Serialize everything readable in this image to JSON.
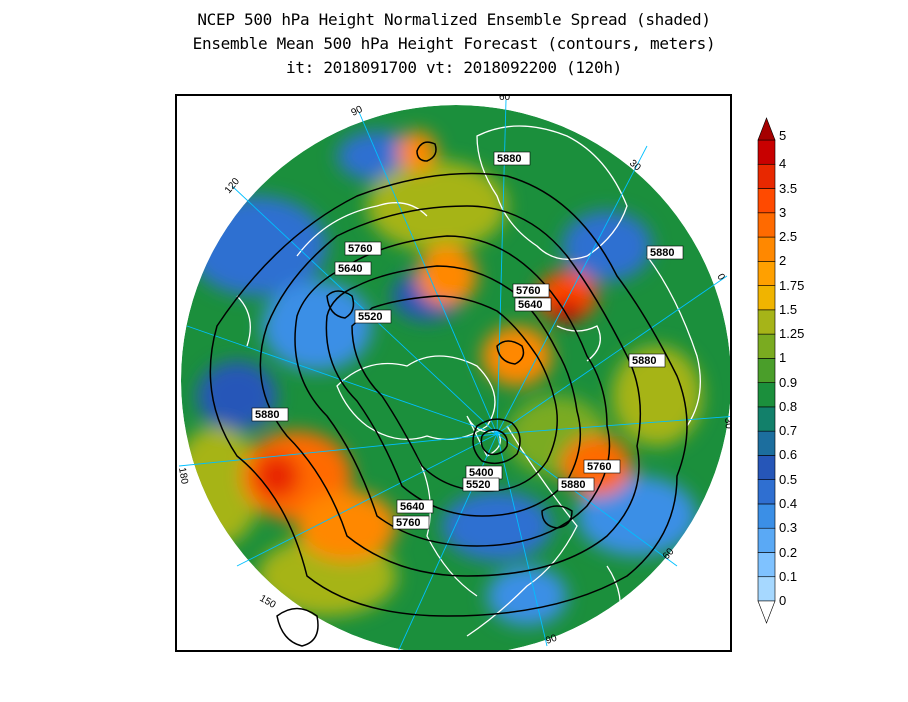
{
  "title": {
    "line1": "NCEP 500 hPa Height Normalized Ensemble Spread (shaded)",
    "line2": "Ensemble Mean 500 hPa Height Forecast (contours, meters)",
    "line3": "it: 2018091700      vt: 2018092200 (120h)"
  },
  "map": {
    "projection": "north-polar-stereographic",
    "longitude_labels": [
      "90",
      "60",
      "30",
      "0",
      "30",
      "60",
      "90",
      "120",
      "150",
      "180",
      "150",
      "120"
    ],
    "contour_labels": [
      "5880",
      "5880",
      "5760",
      "5640",
      "5520",
      "5760",
      "5640",
      "5880",
      "5880",
      "5760",
      "5400",
      "5520",
      "5640",
      "5760",
      "5880"
    ],
    "colors": {
      "contour": "#000000",
      "coastline": "#ffffff",
      "meridian": "#00bfff"
    }
  },
  "colorbar": {
    "levels": [
      "0",
      "0.1",
      "0.2",
      "0.3",
      "0.4",
      "0.5",
      "0.6",
      "0.7",
      "0.8",
      "0.9",
      "1",
      "1.25",
      "1.5",
      "1.75",
      "2",
      "2.5",
      "3",
      "3.5",
      "4",
      "5"
    ],
    "colors": [
      "#a6d8ff",
      "#7fc2ff",
      "#5aa9f5",
      "#3b8fe6",
      "#2f6fd1",
      "#2656b8",
      "#1c6e9e",
      "#12806a",
      "#1b8f3c",
      "#4a9e2a",
      "#7aab20",
      "#a6b418",
      "#f0b400",
      "#ffa000",
      "#ff8800",
      "#ff6a00",
      "#ff4a00",
      "#e82800",
      "#c80000"
    ]
  }
}
